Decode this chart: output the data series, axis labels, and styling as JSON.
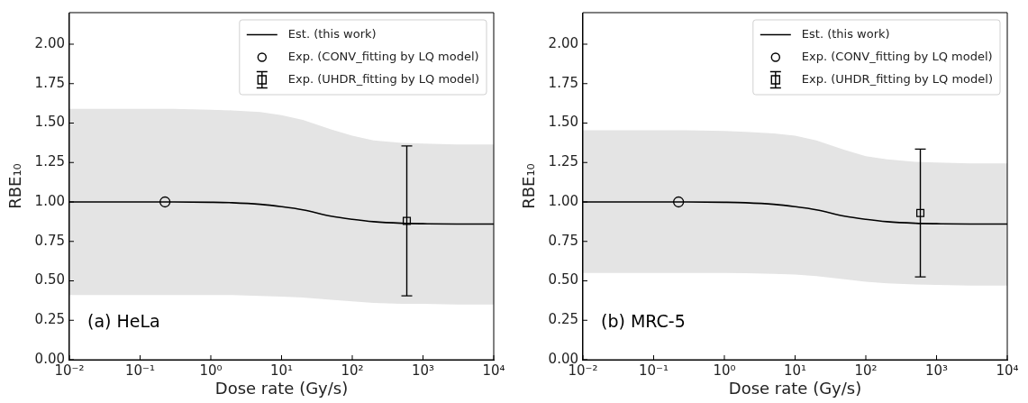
{
  "chart_data": [
    {
      "type": "line",
      "xlabel": "Dose rate (Gy/s)",
      "ylabel": "RBE₁₀",
      "log": "x",
      "xlim": [
        0.01,
        10000
      ],
      "ylim": [
        0,
        2.2
      ],
      "xticks": [
        {
          "value": 0.01,
          "label": "10⁻²"
        },
        {
          "value": 0.1,
          "label": "10⁻¹"
        },
        {
          "value": 1,
          "label": "10⁰"
        },
        {
          "value": 10,
          "label": "10¹"
        },
        {
          "value": 100,
          "label": "10²"
        },
        {
          "value": 1000,
          "label": "10³"
        },
        {
          "value": 10000,
          "label": "10⁴"
        }
      ],
      "yticks": [
        {
          "value": 0,
          "label": "0.00"
        },
        {
          "value": 0.25,
          "label": "0.25"
        },
        {
          "value": 0.5,
          "label": "0.50"
        },
        {
          "value": 0.75,
          "label": "0.75"
        },
        {
          "value": 1,
          "label": "1.00"
        },
        {
          "value": 1.25,
          "label": "1.25"
        },
        {
          "value": 1.5,
          "label": "1.50"
        },
        {
          "value": 1.75,
          "label": "1.75"
        },
        {
          "value": 2,
          "label": "2.00"
        }
      ],
      "grid": false,
      "legend": "top right",
      "annotations": [
        "(a) HeLa"
      ],
      "series": [
        {
          "name": "Est. (this work)",
          "color": "#000000",
          "marker": "none",
          "x": [
            0.01,
            0.1,
            0.3,
            1,
            2,
            5,
            10,
            20,
            50,
            100,
            200,
            500,
            1000,
            3000,
            10000
          ],
          "values": [
            1.0,
            1.0,
            1.0,
            0.998,
            0.995,
            0.985,
            0.97,
            0.95,
            0.91,
            0.89,
            0.875,
            0.865,
            0.862,
            0.86,
            0.86
          ],
          "upper": [
            1.59,
            1.59,
            1.59,
            1.585,
            1.58,
            1.57,
            1.55,
            1.52,
            1.46,
            1.42,
            1.39,
            1.375,
            1.37,
            1.365,
            1.365
          ],
          "lower": [
            0.41,
            0.41,
            0.41,
            0.41,
            0.41,
            0.405,
            0.4,
            0.395,
            0.38,
            0.37,
            0.36,
            0.355,
            0.355,
            0.35,
            0.35
          ]
        },
        {
          "name": "Exp. (CONV_fitting by LQ model)",
          "type": "scatter",
          "color": "#000000",
          "marker": "circle",
          "x": [
            0.225
          ],
          "values": [
            1.0
          ]
        },
        {
          "name": "Exp. (UHDR_fitting by LQ model)",
          "type": "scatter",
          "color": "#000000",
          "marker": "square",
          "x": [
            590
          ],
          "values": [
            0.88
          ],
          "errors": [
            [
              0.405,
              1.355
            ]
          ]
        }
      ]
    },
    {
      "type": "line",
      "xlabel": "Dose rate (Gy/s)",
      "ylabel": "RBE₁₀",
      "log": "x",
      "xlim": [
        0.01,
        10000
      ],
      "ylim": [
        0,
        2.2
      ],
      "xticks": [
        {
          "value": 0.01,
          "label": "10⁻²"
        },
        {
          "value": 0.1,
          "label": "10⁻¹"
        },
        {
          "value": 1,
          "label": "10⁰"
        },
        {
          "value": 10,
          "label": "10¹"
        },
        {
          "value": 100,
          "label": "10²"
        },
        {
          "value": 1000,
          "label": "10³"
        },
        {
          "value": 10000,
          "label": "10⁴"
        }
      ],
      "yticks": [
        {
          "value": 0,
          "label": "0.00"
        },
        {
          "value": 0.25,
          "label": "0.25"
        },
        {
          "value": 0.5,
          "label": "0.50"
        },
        {
          "value": 0.75,
          "label": "0.75"
        },
        {
          "value": 1,
          "label": "1.00"
        },
        {
          "value": 1.25,
          "label": "1.25"
        },
        {
          "value": 1.5,
          "label": "1.50"
        },
        {
          "value": 1.75,
          "label": "1.75"
        },
        {
          "value": 2,
          "label": "2.00"
        }
      ],
      "grid": false,
      "legend": "top right",
      "annotations": [
        "(b) MRC-5"
      ],
      "series": [
        {
          "name": "Est. (this work)",
          "color": "#000000",
          "marker": "none",
          "x": [
            0.01,
            0.1,
            0.3,
            1,
            2,
            5,
            10,
            20,
            50,
            100,
            200,
            500,
            1000,
            3000,
            10000
          ],
          "values": [
            1.0,
            1.0,
            1.0,
            0.998,
            0.995,
            0.985,
            0.97,
            0.95,
            0.91,
            0.89,
            0.875,
            0.865,
            0.862,
            0.86,
            0.86
          ],
          "upper": [
            1.455,
            1.455,
            1.455,
            1.45,
            1.445,
            1.435,
            1.42,
            1.39,
            1.33,
            1.29,
            1.27,
            1.255,
            1.25,
            1.245,
            1.245
          ],
          "lower": [
            0.55,
            0.55,
            0.55,
            0.55,
            0.548,
            0.545,
            0.54,
            0.53,
            0.51,
            0.495,
            0.485,
            0.477,
            0.475,
            0.47,
            0.47
          ]
        },
        {
          "name": "Exp. (CONV_fitting by LQ model)",
          "type": "scatter",
          "color": "#000000",
          "marker": "circle",
          "x": [
            0.225
          ],
          "values": [
            1.0
          ]
        },
        {
          "name": "Exp. (UHDR_fitting by LQ model)",
          "type": "scatter",
          "color": "#000000",
          "marker": "square",
          "x": [
            590
          ],
          "values": [
            0.93
          ],
          "errors": [
            [
              0.525,
              1.335
            ]
          ]
        }
      ]
    }
  ]
}
